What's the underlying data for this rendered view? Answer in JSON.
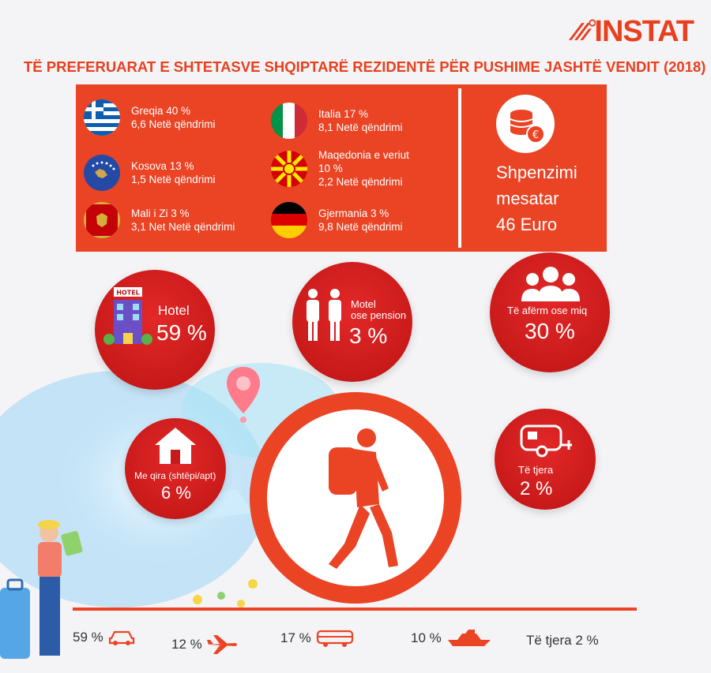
{
  "brand": {
    "logo_text": "INSTAT",
    "color": "#e8401e"
  },
  "title": "TË PREFERUARAT E SHTETASVE SHQIPTARË REZIDENTË PËR PUSHIME JASHTË VENDIT (2018)",
  "countries": [
    {
      "name": "Greqia  40 %",
      "detail": "6,6 Netë qëndrimi",
      "flag": "greece-flag"
    },
    {
      "name": "Kosova 13 %",
      "detail": "1,5 Netë qëndrimi",
      "flag": "kosovo-flag"
    },
    {
      "name": "Mali i Zi 3 %",
      "detail": "3,1 Net Netë qëndrimi",
      "flag": "montenegro-flag"
    },
    {
      "name": "Italia 17 %",
      "detail": "8,1 Netë qëndrimi",
      "flag": "italy-flag"
    },
    {
      "name": "Maqedonia  e veriut",
      "name2": "10 %",
      "detail": "2,2 Netë qëndrimi",
      "flag": "north-macedonia-flag"
    },
    {
      "name": "Gjermania 3 %",
      "detail": "9,8 Netë qëndrimi",
      "flag": "germany-flag"
    }
  ],
  "spending": {
    "line1": "Shpenzimi",
    "line2": "mesatar",
    "line3": "46 Euro",
    "icon": "coins-euro-icon"
  },
  "accommodation": {
    "hotel": {
      "label": "Hotel",
      "value": "59 %",
      "icon": "hotel-icon",
      "sign": "HOTEL"
    },
    "motel": {
      "label1": "Motel",
      "label2": "ose pension",
      "value": "3 %",
      "icon": "people-icon"
    },
    "relatives": {
      "label": "Të afërm ose miq",
      "value": "30 %",
      "icon": "group-icon"
    },
    "rent": {
      "label": "Me qira (shtëpi/apt)",
      "value": "6 %",
      "icon": "house-icon"
    },
    "other": {
      "label": "Të tjera",
      "value": "2 %",
      "icon": "caravan-icon"
    }
  },
  "transport": [
    {
      "value": "59 %",
      "icon": "car-icon"
    },
    {
      "value": "12 %",
      "icon": "airplane-icon"
    },
    {
      "value": "17 %",
      "icon": "bus-icon"
    },
    {
      "value": "10 %",
      "icon": "ship-icon"
    },
    {
      "value": "Të tjera 2 %",
      "icon": ""
    }
  ],
  "colors": {
    "accent": "#ea4425",
    "bubble": "#d11f1f",
    "background": "#f4f4f6"
  }
}
